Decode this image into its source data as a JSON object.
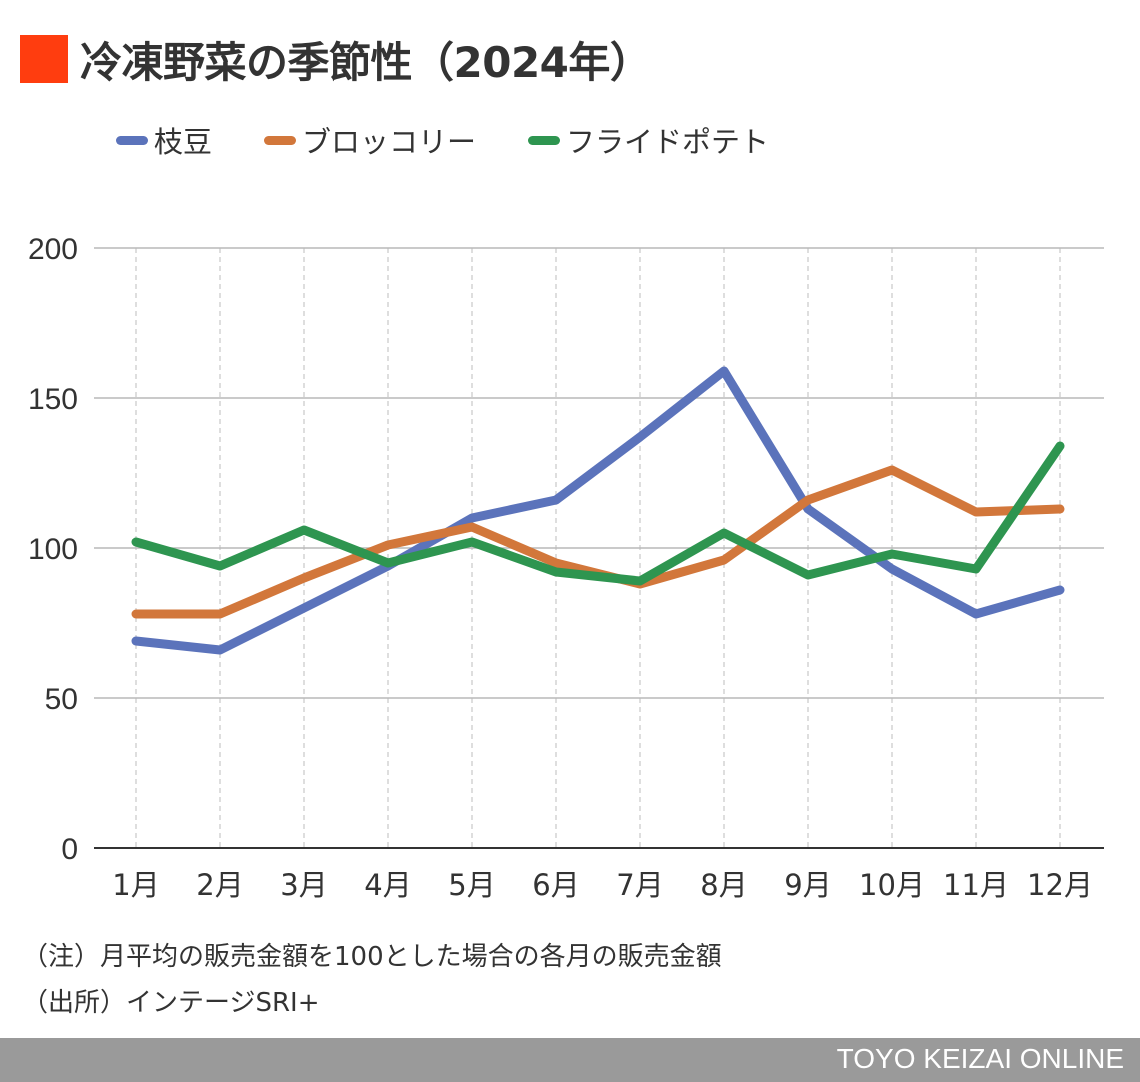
{
  "title": "冷凍野菜の季節性（2024年）",
  "title_mark_color": "#ff3d0f",
  "note": "（注）月平均の販売金額を100とした場合の各月の販売金額",
  "source": "（出所）インテージSRI+",
  "footer": "TOYO KEIZAI ONLINE",
  "chart_data": {
    "type": "line",
    "title": "冷凍野菜の季節性（2024年）",
    "xlabel": "",
    "ylabel": "",
    "categories": [
      "1月",
      "2月",
      "3月",
      "4月",
      "5月",
      "6月",
      "7月",
      "8月",
      "9月",
      "10月",
      "11月",
      "12月"
    ],
    "ylim": [
      0,
      200
    ],
    "yticks": [
      "0",
      "50",
      "100",
      "150",
      "200"
    ],
    "grid": true,
    "legend_position": "top",
    "series": [
      {
        "name": "枝豆",
        "color": "#5b73bb",
        "values": [
          69,
          66,
          80,
          94,
          110,
          116,
          137,
          159,
          113,
          93,
          78,
          86
        ]
      },
      {
        "name": "ブロッコリー",
        "color": "#d2773b",
        "values": [
          78,
          78,
          90,
          101,
          107,
          95,
          88,
          96,
          116,
          126,
          112,
          113
        ]
      },
      {
        "name": "フライドポテト",
        "color": "#2e9550",
        "values": [
          102,
          94,
          106,
          95,
          102,
          92,
          89,
          105,
          91,
          98,
          93,
          134
        ]
      }
    ]
  }
}
